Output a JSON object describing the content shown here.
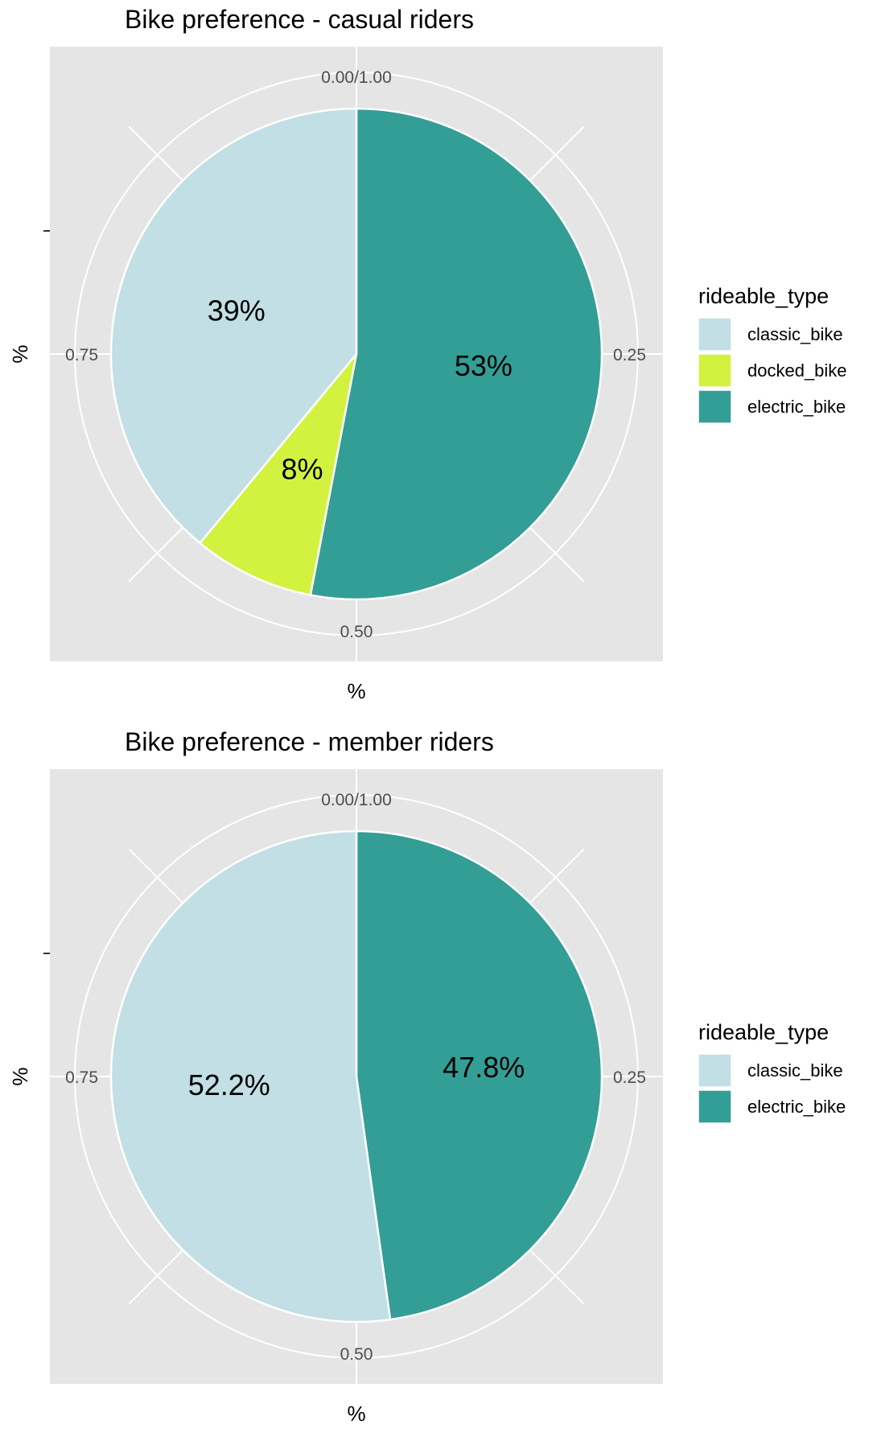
{
  "chart_data": [
    {
      "type": "pie",
      "title": "Bike preference - casual riders",
      "xlabel": "%",
      "ylabel": "%",
      "theta_ticks": [
        "0.00/1.00",
        "0.25",
        "0.50",
        "0.75"
      ],
      "legend": {
        "title": "rideable_type",
        "placement": "right"
      },
      "slices": [
        {
          "category": "electric_bike",
          "value": 0.53,
          "label": "53%",
          "color": "#339e96"
        },
        {
          "category": "docked_bike",
          "value": 0.08,
          "label": "8%",
          "color": "#d2f23f"
        },
        {
          "category": "classic_bike",
          "value": 0.39,
          "label": "39%",
          "color": "#c1dfe4"
        }
      ],
      "legend_entries": [
        {
          "label": "classic_bike",
          "color": "#c1dfe4"
        },
        {
          "label": "docked_bike",
          "color": "#d2f23f"
        },
        {
          "label": "electric_bike",
          "color": "#339e96"
        }
      ]
    },
    {
      "type": "pie",
      "title": "Bike preference - member riders",
      "xlabel": "%",
      "ylabel": "%",
      "theta_ticks": [
        "0.00/1.00",
        "0.25",
        "0.50",
        "0.75"
      ],
      "legend": {
        "title": "rideable_type",
        "placement": "right"
      },
      "slices": [
        {
          "category": "electric_bike",
          "value": 0.478,
          "label": "47.8%",
          "color": "#339e96"
        },
        {
          "category": "classic_bike",
          "value": 0.522,
          "label": "52.2%",
          "color": "#c1dfe4"
        }
      ],
      "legend_entries": [
        {
          "label": "classic_bike",
          "color": "#c1dfe4"
        },
        {
          "label": "electric_bike",
          "color": "#339e96"
        }
      ]
    }
  ],
  "colors": {
    "panel": "#e5e5e5",
    "grid": "#ffffff",
    "tick_text": "#4d4d4d"
  }
}
